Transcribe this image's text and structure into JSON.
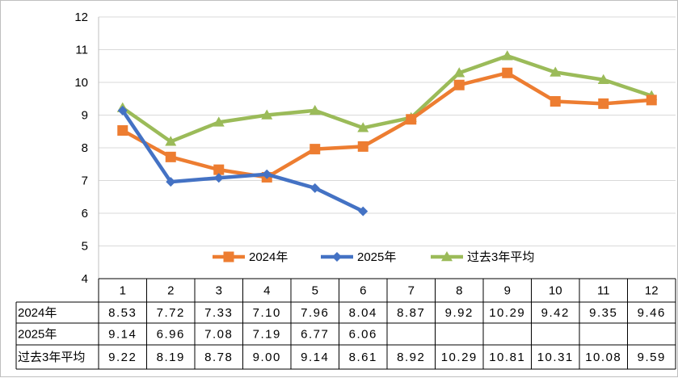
{
  "chart_data": {
    "type": "line",
    "categories": [
      "1",
      "2",
      "3",
      "4",
      "5",
      "6",
      "7",
      "8",
      "9",
      "10",
      "11",
      "12"
    ],
    "ylim": [
      4,
      12
    ],
    "yticks": [
      4,
      5,
      6,
      7,
      8,
      9,
      10,
      11,
      12
    ],
    "grid": true,
    "legend_position": "inside-bottom-center",
    "series": [
      {
        "name": "2024年",
        "color": "#ed7d31",
        "marker": "square",
        "values": [
          8.53,
          7.72,
          7.33,
          7.1,
          7.96,
          8.04,
          8.87,
          9.92,
          10.29,
          9.42,
          9.35,
          9.46
        ],
        "labels": [
          "8.53",
          "7.72",
          "7.33",
          "7.10",
          "7.96",
          "8.04",
          "8.87",
          "9.92",
          "10.29",
          "9.42",
          "9.35",
          "9.46"
        ]
      },
      {
        "name": "2025年",
        "color": "#4472c4",
        "marker": "diamond",
        "values": [
          9.14,
          6.96,
          7.08,
          7.19,
          6.77,
          6.06,
          null,
          null,
          null,
          null,
          null,
          null
        ],
        "labels": [
          "9.14",
          "6.96",
          "7.08",
          "7.19",
          "6.77",
          "6.06",
          "",
          "",
          "",
          "",
          "",
          ""
        ]
      },
      {
        "name": "过去3年平均",
        "color": "#9bbb59",
        "marker": "triangle",
        "values": [
          9.22,
          8.19,
          8.78,
          9.0,
          9.14,
          8.61,
          8.92,
          10.29,
          10.81,
          10.31,
          10.08,
          9.59
        ],
        "labels": [
          "9.22",
          "8.19",
          "8.78",
          "9.00",
          "9.14",
          "8.61",
          "8.92",
          "10.29",
          "10.81",
          "10.31",
          "10.08",
          "9.59"
        ]
      }
    ]
  }
}
